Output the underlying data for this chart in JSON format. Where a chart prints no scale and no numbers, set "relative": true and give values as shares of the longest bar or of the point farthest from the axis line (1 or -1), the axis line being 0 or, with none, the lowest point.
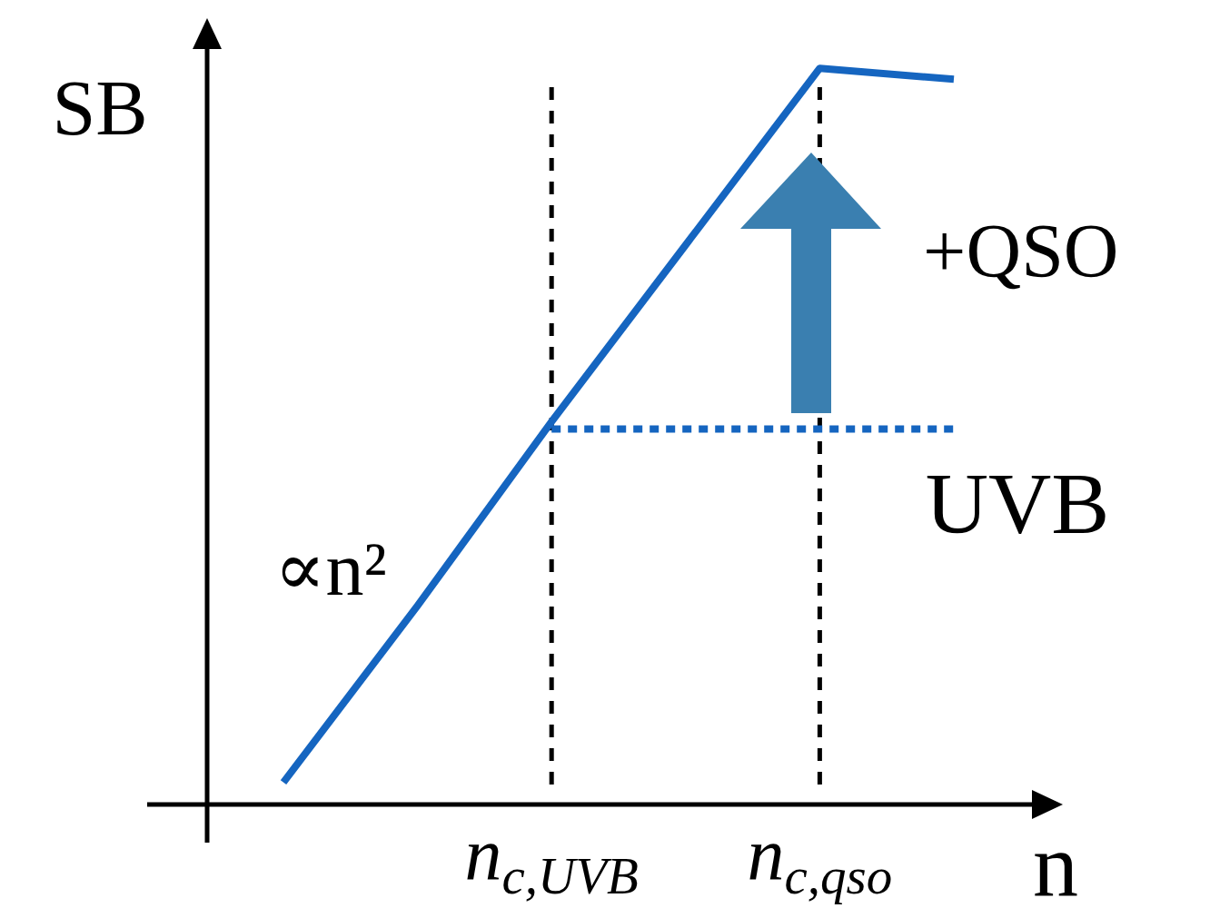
{
  "chart_data": {
    "type": "line",
    "relative": true,
    "xlabel": "n",
    "ylabel": "SB",
    "categories": [
      null,
      null,
      "n$_{c,UVB}$",
      null,
      "n$_{c,qso}$",
      null
    ],
    "tick_labels": "x",
    "marker": "none",
    "series": [
      {
        "color": "#1565c0",
        "values": [
          0.03,
          0.27,
          0.52,
          0.76,
          1,
          0.985
        ]
      },
      {
        "name": "UVB",
        "color": "#1565c0",
        "line_style": "dotted",
        "values": [
          null,
          null,
          0.51,
          0.51,
          0.51,
          0.51
        ]
      }
    ],
    "ref_lines": [
      {
        "axis": "x",
        "value": "n$_{c,UVB}$",
        "color": "#000000",
        "line_style": "dashed"
      },
      {
        "axis": "x",
        "value": "n$_{c,qso}$",
        "color": "#000000",
        "line_style": "dashed"
      }
    ],
    "annotations": [
      "∝n²",
      "+QSO"
    ]
  }
}
